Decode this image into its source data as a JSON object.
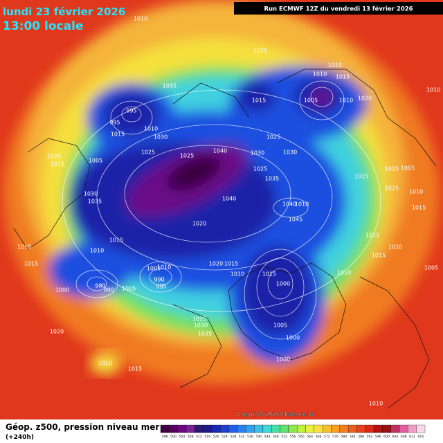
{
  "header": {
    "date": "lundi 23 février 2026",
    "time": "13:00 locale",
    "run": "Run ECMWF 12Z du vendredi 13 février 2026"
  },
  "map": {
    "pressure_labels": [
      1010,
      1020,
      1010,
      1010,
      1015,
      1010,
      1035,
      995,
      995,
      1010,
      1015,
      1030,
      1025,
      1025,
      1040,
      1030,
      1030,
      1025,
      1015,
      1005,
      1010,
      1020,
      1025,
      1015,
      1005,
      1025,
      1035,
      1040,
      1040,
      1010,
      1045,
      1015,
      1025,
      1005,
      1025,
      1010,
      1015,
      1030,
      1035,
      1020,
      1015,
      1010,
      1015,
      1015,
      1010,
      1005,
      1020,
      1015,
      1010,
      1015,
      1000,
      990,
      995,
      1005,
      980,
      1000,
      990,
      1010,
      1015,
      1020,
      1015,
      1005,
      1005,
      1000,
      1000,
      1025,
      1030,
      1035,
      1020,
      1010,
      1015,
      1010
    ]
  },
  "footer": {
    "title": "Géop. z500, pression niveau mer",
    "lead": "(+240h)",
    "copyright": "Copyright 2026 Meteociel.fr"
  },
  "scale": {
    "values": [
      496,
      500,
      504,
      508,
      512,
      516,
      520,
      524,
      528,
      532,
      536,
      540,
      544,
      548,
      552,
      556,
      560,
      564,
      568,
      572,
      576,
      580,
      584,
      588,
      592,
      596,
      600,
      604,
      608,
      612,
      616
    ],
    "colors": [
      "#3b003f",
      "#55005f",
      "#6b0a7f",
      "#7a2294",
      "#2a1a6e",
      "#1d1a8a",
      "#1a2ab0",
      "#1e40d0",
      "#2060e8",
      "#2b80f0",
      "#33a0f0",
      "#3cc0e8",
      "#40d8d0",
      "#48e0a0",
      "#60e070",
      "#90e850",
      "#c0f040",
      "#e8f040",
      "#f8e040",
      "#f8c030",
      "#f8a020",
      "#f08020",
      "#e86020",
      "#e84020",
      "#d82818",
      "#b81010",
      "#981010",
      "#c03060",
      "#e060a0",
      "#f0a0c8",
      "#f8d8e8"
    ]
  }
}
